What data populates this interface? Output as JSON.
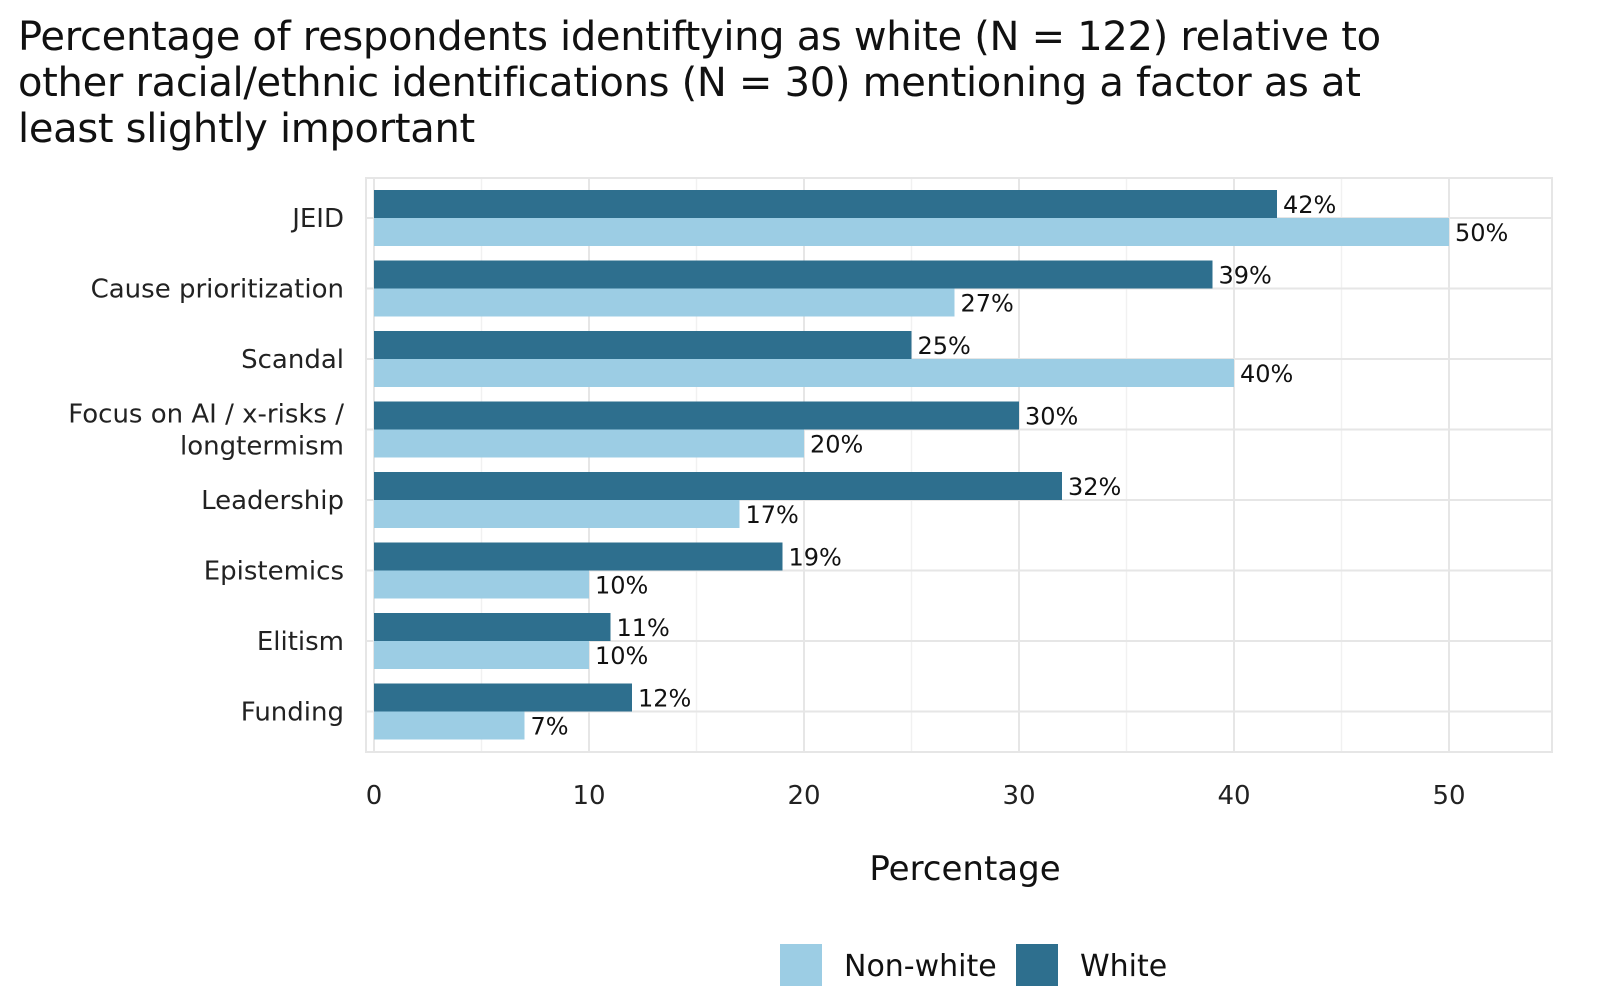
{
  "chart_data": {
    "type": "bar",
    "orientation": "horizontal",
    "title_lines": [
      "Percentage of respondents identiftying as white (N = 122) relative to",
      "other racial/ethnic identifications (N = 30) mentioning a factor as at",
      "least slightly important"
    ],
    "categories": [
      "JEID",
      "Cause prioritization",
      "Scandal",
      "Focus on AI / x-risks / longtermism",
      "Leadership",
      "Epistemics",
      "Elitism",
      "Funding"
    ],
    "category_lines": [
      [
        "JEID"
      ],
      [
        "Cause prioritization"
      ],
      [
        "Scandal"
      ],
      [
        "Focus on AI / x-risks /",
        "longtermism"
      ],
      [
        "Leadership"
      ],
      [
        "Epistemics"
      ],
      [
        "Elitism"
      ],
      [
        "Funding"
      ]
    ],
    "series": [
      {
        "name": "White",
        "color": "#2e6f8e",
        "values": [
          42,
          39,
          25,
          30,
          32,
          19,
          11,
          12
        ],
        "labels": [
          "42%",
          "39%",
          "25%",
          "30%",
          "32%",
          "19%",
          "11%",
          "12%"
        ]
      },
      {
        "name": "Non-white",
        "color": "#9ccde4",
        "values": [
          50,
          27,
          40,
          20,
          17,
          10,
          10,
          7
        ],
        "labels": [
          "50%",
          "27%",
          "40%",
          "20%",
          "17%",
          "10%",
          "10%",
          "7%"
        ]
      }
    ],
    "xlabel": "Percentage",
    "ylabel": "",
    "xlim": [
      0,
      55
    ],
    "xticks": [
      0,
      10,
      20,
      30,
      40,
      50
    ],
    "grid": true,
    "legend_position": "bottom",
    "legend_order": [
      "Non-white",
      "White"
    ]
  }
}
